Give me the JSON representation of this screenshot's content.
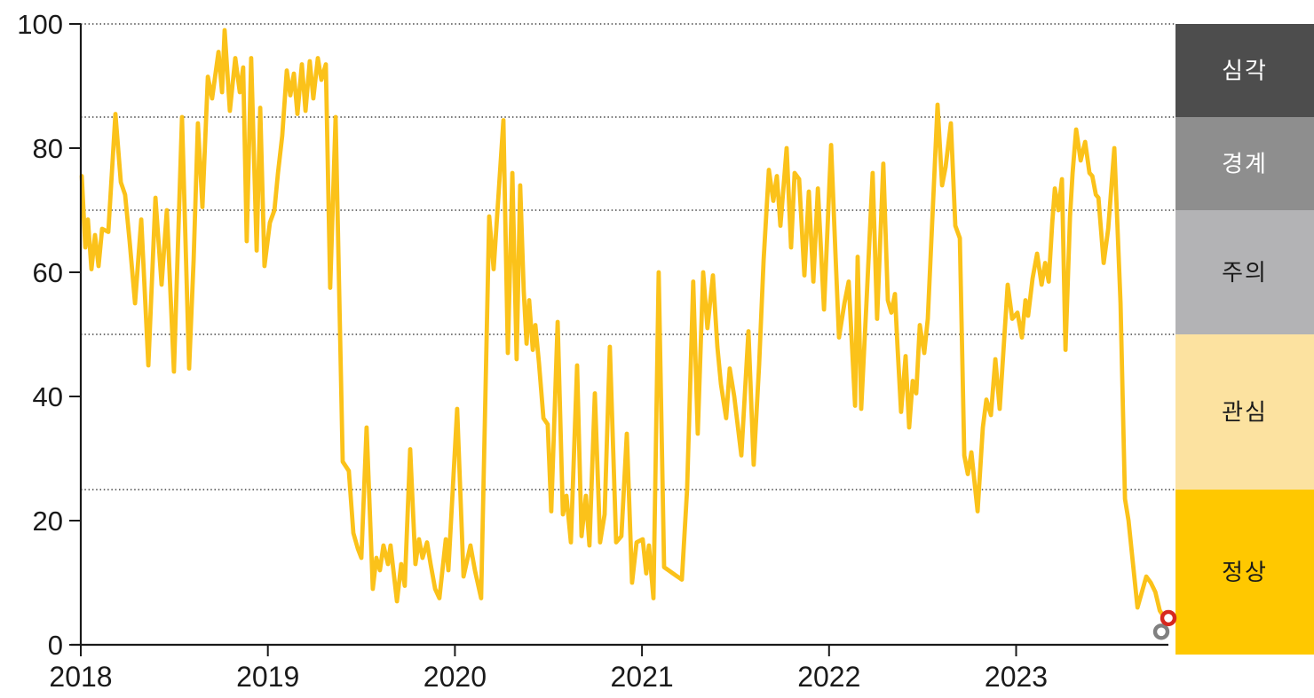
{
  "chart_data": {
    "type": "line",
    "title": "",
    "x_axis": {
      "ticks": [
        2018,
        2019,
        2020,
        2021,
        2022,
        2023
      ],
      "range": [
        2018,
        2023.95
      ]
    },
    "y_axis": {
      "ticks": [
        0,
        20,
        40,
        60,
        80,
        100
      ],
      "range": [
        0,
        100
      ]
    },
    "y_gridlines": [
      100,
      85,
      70,
      50,
      25
    ],
    "legend_position": "right",
    "grid": "dotted-horizontal",
    "risk_bands": [
      {
        "label": "심각",
        "range": [
          85,
          100
        ],
        "color": "#4D4D4D",
        "text_color": "#FFFFFF"
      },
      {
        "label": "경계",
        "range": [
          70,
          85
        ],
        "color": "#8E8E8E",
        "text_color": "#FFFFFF"
      },
      {
        "label": "주의",
        "range": [
          50,
          70
        ],
        "color": "#B3B3B5",
        "text_color": "#1A1A1A"
      },
      {
        "label": "관심",
        "range": [
          25,
          50
        ],
        "color": "#FCE2A0",
        "text_color": "#1A1A1A"
      },
      {
        "label": "정상",
        "range": [
          0,
          25
        ],
        "color": "#FFC800",
        "text_color": "#1A1A1A"
      }
    ],
    "series": [
      {
        "name": "index",
        "color": "#FBC21A",
        "stroke_width": 4.8,
        "points": [
          [
            2018.005,
            75.5
          ],
          [
            2018.024,
            64
          ],
          [
            2018.038,
            68.5
          ],
          [
            2018.057,
            60.5
          ],
          [
            2018.076,
            66
          ],
          [
            2018.095,
            61
          ],
          [
            2018.114,
            67
          ],
          [
            2018.147,
            66.5
          ],
          [
            2018.185,
            85.5
          ],
          [
            2018.214,
            74.5
          ],
          [
            2018.237,
            72.5
          ],
          [
            2018.261,
            65
          ],
          [
            2018.29,
            55
          ],
          [
            2018.323,
            68.5
          ],
          [
            2018.361,
            45
          ],
          [
            2018.399,
            72
          ],
          [
            2018.432,
            58
          ],
          [
            2018.46,
            70
          ],
          [
            2018.498,
            44
          ],
          [
            2018.541,
            85
          ],
          [
            2018.579,
            44.5
          ],
          [
            2018.603,
            62
          ],
          [
            2018.626,
            84
          ],
          [
            2018.65,
            70.5
          ],
          [
            2018.679,
            91.5
          ],
          [
            2018.702,
            88
          ],
          [
            2018.736,
            95.5
          ],
          [
            2018.755,
            89
          ],
          [
            2018.769,
            99
          ],
          [
            2018.797,
            86
          ],
          [
            2018.826,
            94.5
          ],
          [
            2018.85,
            89
          ],
          [
            2018.868,
            93
          ],
          [
            2018.887,
            65
          ],
          [
            2018.911,
            94.5
          ],
          [
            2018.94,
            63.5
          ],
          [
            2018.959,
            86.5
          ],
          [
            2018.982,
            61
          ],
          [
            2019.011,
            68
          ],
          [
            2019.035,
            70
          ],
          [
            2019.054,
            76
          ],
          [
            2019.077,
            82
          ],
          [
            2019.101,
            92.5
          ],
          [
            2019.12,
            88.5
          ],
          [
            2019.139,
            92
          ],
          [
            2019.158,
            85.5
          ],
          [
            2019.182,
            93.5
          ],
          [
            2019.201,
            86
          ],
          [
            2019.224,
            94
          ],
          [
            2019.243,
            88
          ],
          [
            2019.267,
            94.5
          ],
          [
            2019.286,
            91
          ],
          [
            2019.31,
            93.5
          ],
          [
            2019.333,
            57.5
          ],
          [
            2019.362,
            85
          ],
          [
            2019.4,
            29.5
          ],
          [
            2019.433,
            28
          ],
          [
            2019.457,
            18
          ],
          [
            2019.481,
            15.5
          ],
          [
            2019.5,
            14
          ],
          [
            2019.528,
            35
          ],
          [
            2019.561,
            9
          ],
          [
            2019.58,
            14
          ],
          [
            2019.599,
            12
          ],
          [
            2019.618,
            16
          ],
          [
            2019.642,
            13
          ],
          [
            2019.656,
            16
          ],
          [
            2019.69,
            7
          ],
          [
            2019.713,
            13
          ],
          [
            2019.732,
            9.5
          ],
          [
            2019.761,
            31.5
          ],
          [
            2019.789,
            13
          ],
          [
            2019.808,
            17
          ],
          [
            2019.827,
            14
          ],
          [
            2019.851,
            16.5
          ],
          [
            2019.87,
            13
          ],
          [
            2019.894,
            9
          ],
          [
            2019.917,
            7.5
          ],
          [
            2019.951,
            17
          ],
          [
            2019.965,
            12
          ],
          [
            2020.012,
            38
          ],
          [
            2020.046,
            11
          ],
          [
            2020.083,
            16
          ],
          [
            2020.107,
            12
          ],
          [
            2020.14,
            7.5
          ],
          [
            2020.183,
            69
          ],
          [
            2020.207,
            60.5
          ],
          [
            2020.259,
            84.5
          ],
          [
            2020.283,
            47
          ],
          [
            2020.307,
            76
          ],
          [
            2020.33,
            46
          ],
          [
            2020.349,
            74
          ],
          [
            2020.368,
            57
          ],
          [
            2020.383,
            48.5
          ],
          [
            2020.397,
            55.5
          ],
          [
            2020.416,
            47.5
          ],
          [
            2020.43,
            51.5
          ],
          [
            2020.449,
            45.5
          ],
          [
            2020.473,
            36.5
          ],
          [
            2020.496,
            35.5
          ],
          [
            2020.515,
            21.5
          ],
          [
            2020.549,
            52
          ],
          [
            2020.577,
            21
          ],
          [
            2020.596,
            24
          ],
          [
            2020.62,
            16.5
          ],
          [
            2020.653,
            45
          ],
          [
            2020.677,
            17.5
          ],
          [
            2020.7,
            24
          ],
          [
            2020.719,
            16
          ],
          [
            2020.748,
            40.5
          ],
          [
            2020.776,
            16.5
          ],
          [
            2020.8,
            21
          ],
          [
            2020.828,
            48
          ],
          [
            2020.862,
            16.5
          ],
          [
            2020.89,
            17.5
          ],
          [
            2020.919,
            34
          ],
          [
            2020.947,
            10
          ],
          [
            2020.971,
            16.5
          ],
          [
            2021.004,
            17
          ],
          [
            2021.023,
            11.5
          ],
          [
            2021.037,
            16
          ],
          [
            2021.061,
            7.5
          ],
          [
            2021.089,
            60
          ],
          [
            2021.118,
            12.5
          ],
          [
            2021.142,
            12
          ],
          [
            2021.165,
            11.5
          ],
          [
            2021.189,
            11
          ],
          [
            2021.213,
            10.5
          ],
          [
            2021.241,
            25
          ],
          [
            2021.274,
            58.5
          ],
          [
            2021.298,
            34
          ],
          [
            2021.327,
            60
          ],
          [
            2021.35,
            51
          ],
          [
            2021.379,
            59.5
          ],
          [
            2021.403,
            48
          ],
          [
            2021.422,
            42
          ],
          [
            2021.45,
            36.5
          ],
          [
            2021.469,
            44.5
          ],
          [
            2021.493,
            40
          ],
          [
            2021.531,
            30.5
          ],
          [
            2021.569,
            50.5
          ],
          [
            2021.597,
            29
          ],
          [
            2021.626,
            45
          ],
          [
            2021.65,
            62
          ],
          [
            2021.678,
            76.5
          ],
          [
            2021.702,
            71.5
          ],
          [
            2021.721,
            75.5
          ],
          [
            2021.74,
            67.5
          ],
          [
            2021.773,
            80
          ],
          [
            2021.797,
            64
          ],
          [
            2021.816,
            76
          ],
          [
            2021.84,
            75
          ],
          [
            2021.868,
            59.5
          ],
          [
            2021.892,
            73
          ],
          [
            2021.916,
            58.5
          ],
          [
            2021.94,
            73.5
          ],
          [
            2021.973,
            54
          ],
          [
            2022.011,
            80.5
          ],
          [
            2022.034,
            63
          ],
          [
            2022.053,
            49.5
          ],
          [
            2022.082,
            55
          ],
          [
            2022.105,
            58.5
          ],
          [
            2022.139,
            38.5
          ],
          [
            2022.153,
            62.5
          ],
          [
            2022.172,
            38
          ],
          [
            2022.2,
            55
          ],
          [
            2022.233,
            76
          ],
          [
            2022.257,
            52.5
          ],
          [
            2022.29,
            77.5
          ],
          [
            2022.314,
            55.5
          ],
          [
            2022.333,
            53.5
          ],
          [
            2022.352,
            56.5
          ],
          [
            2022.366,
            48
          ],
          [
            2022.385,
            37.5
          ],
          [
            2022.409,
            46.5
          ],
          [
            2022.428,
            35
          ],
          [
            2022.447,
            42.5
          ],
          [
            2022.466,
            40.5
          ],
          [
            2022.485,
            51.5
          ],
          [
            2022.509,
            47
          ],
          [
            2022.528,
            52.5
          ],
          [
            2022.58,
            87
          ],
          [
            2022.604,
            74
          ],
          [
            2022.623,
            77
          ],
          [
            2022.651,
            84
          ],
          [
            2022.675,
            67.5
          ],
          [
            2022.699,
            65.5
          ],
          [
            2022.723,
            30.5
          ],
          [
            2022.742,
            27.5
          ],
          [
            2022.761,
            31
          ],
          [
            2022.794,
            21.5
          ],
          [
            2022.822,
            35
          ],
          [
            2022.841,
            39.5
          ],
          [
            2022.865,
            37
          ],
          [
            2022.889,
            46
          ],
          [
            2022.912,
            38
          ],
          [
            2022.955,
            58
          ],
          [
            2022.979,
            52.5
          ],
          [
            2023.007,
            53.5
          ],
          [
            2023.031,
            49.5
          ],
          [
            2023.05,
            55.5
          ],
          [
            2023.064,
            53
          ],
          [
            2023.088,
            59
          ],
          [
            2023.112,
            63
          ],
          [
            2023.136,
            58
          ],
          [
            2023.155,
            61.5
          ],
          [
            2023.174,
            58.5
          ],
          [
            2023.193,
            68
          ],
          [
            2023.207,
            73.5
          ],
          [
            2023.226,
            70
          ],
          [
            2023.245,
            75
          ],
          [
            2023.264,
            47.5
          ],
          [
            2023.288,
            69
          ],
          [
            2023.302,
            76
          ],
          [
            2023.321,
            83
          ],
          [
            2023.345,
            78
          ],
          [
            2023.369,
            81
          ],
          [
            2023.392,
            76
          ],
          [
            2023.407,
            75.5
          ],
          [
            2023.426,
            72.5
          ],
          [
            2023.44,
            72
          ],
          [
            2023.468,
            61.5
          ],
          [
            2023.492,
            67
          ],
          [
            2023.525,
            80
          ],
          [
            2023.558,
            55
          ],
          [
            2023.582,
            23.5
          ],
          [
            2023.601,
            20
          ],
          [
            2023.649,
            6
          ],
          [
            2023.696,
            11
          ],
          [
            2023.72,
            10
          ],
          [
            2023.744,
            8.5
          ],
          [
            2023.768,
            5.5
          ],
          [
            2023.801,
            4
          ]
        ]
      }
    ],
    "end_markers": [
      {
        "name": "previous-point-marker",
        "year": 2023.776,
        "value": 2.1,
        "color": "#808080"
      },
      {
        "name": "latest-point-marker",
        "year": 2023.814,
        "value": 4.3,
        "color": "#D7281E"
      }
    ]
  }
}
